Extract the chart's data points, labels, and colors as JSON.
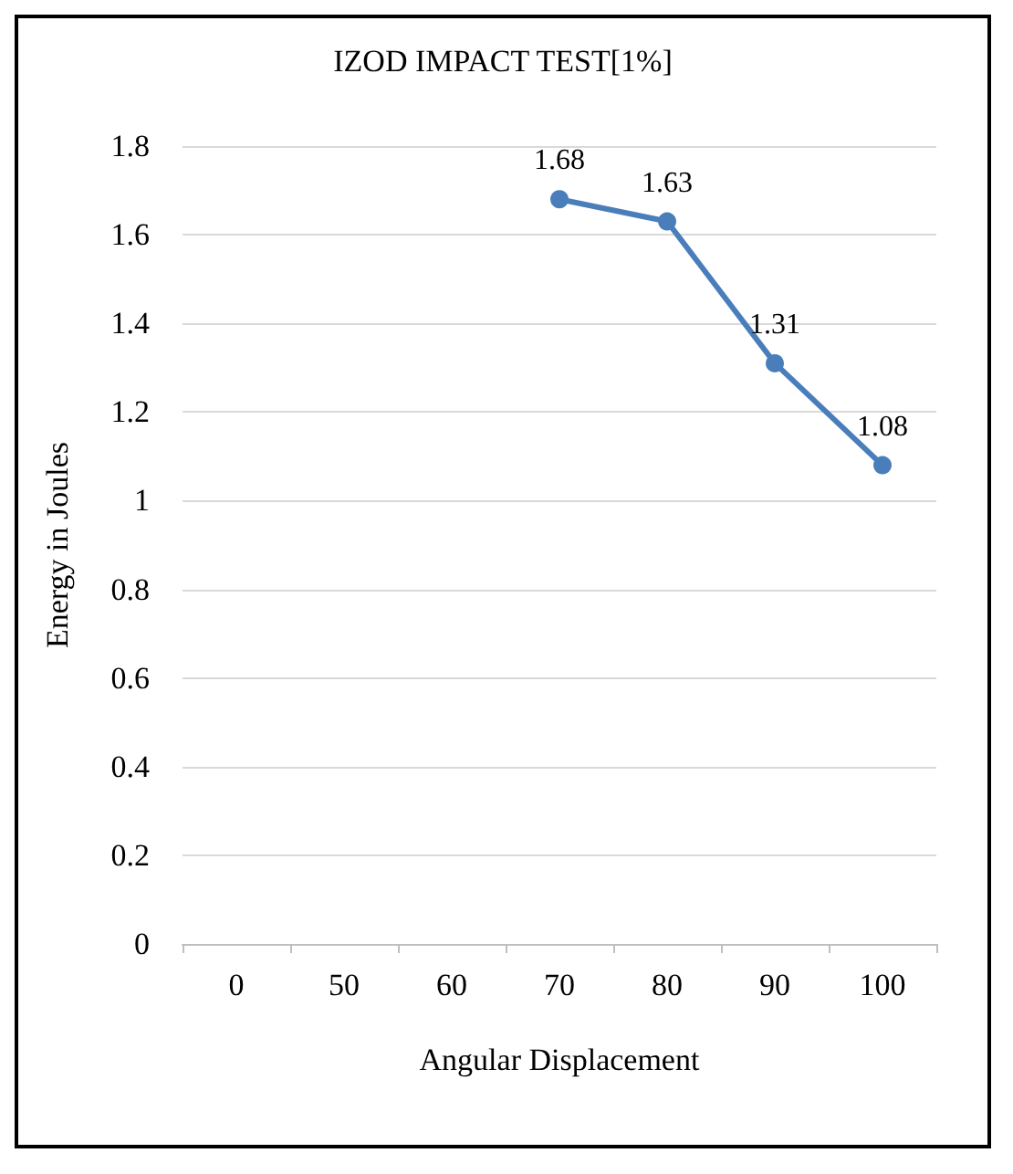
{
  "chart_data": {
    "type": "line",
    "title": "IZOD IMPACT TEST[1%]",
    "xlabel": "Angular Displacement",
    "ylabel": "Energy in Joules",
    "categories": [
      "0",
      "50",
      "60",
      "70",
      "80",
      "90",
      "100"
    ],
    "series": [
      {
        "color": "#4a7ebb",
        "values": [
          null,
          null,
          null,
          1.68,
          1.63,
          1.31,
          1.08
        ]
      }
    ],
    "ylim": [
      0,
      1.8
    ],
    "yticks": [
      0,
      0.2,
      0.4,
      0.6,
      0.8,
      1,
      1.2,
      1.4,
      1.6,
      1.8
    ],
    "grid": "y",
    "marker": "circle",
    "line_style": "solid",
    "data_labels": true
  }
}
